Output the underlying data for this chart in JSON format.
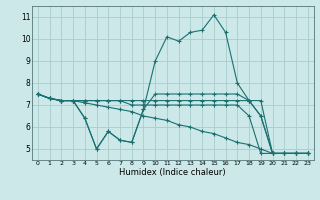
{
  "title": "",
  "xlabel": "Humidex (Indice chaleur)",
  "bg_color": "#cce8e8",
  "grid_color": "#aacccc",
  "line_color": "#1a7070",
  "x_ticks": [
    0,
    1,
    2,
    3,
    4,
    5,
    6,
    7,
    8,
    9,
    10,
    11,
    12,
    13,
    14,
    15,
    16,
    17,
    18,
    19,
    20,
    21,
    22,
    23
  ],
  "y_ticks": [
    5,
    6,
    7,
    8,
    9,
    10,
    11
  ],
  "ylim": [
    4.5,
    11.5
  ],
  "xlim": [
    -0.5,
    23.5
  ],
  "series": [
    {
      "x": [
        0,
        1,
        2,
        3,
        4,
        5,
        6,
        7,
        8,
        9,
        10,
        11,
        12,
        13,
        14,
        15,
        16,
        17,
        18,
        19,
        20,
        21,
        22,
        23
      ],
      "y": [
        7.5,
        7.3,
        7.2,
        7.2,
        6.4,
        5.0,
        5.8,
        5.4,
        5.3,
        6.8,
        7.5,
        7.5,
        7.5,
        7.5,
        7.5,
        7.5,
        7.5,
        7.5,
        7.2,
        6.5,
        4.8,
        4.8,
        4.8,
        4.8
      ]
    },
    {
      "x": [
        0,
        1,
        2,
        3,
        4,
        5,
        6,
        7,
        8,
        9,
        10,
        11,
        12,
        13,
        14,
        15,
        16,
        17,
        18,
        19,
        20,
        21,
        22,
        23
      ],
      "y": [
        7.5,
        7.3,
        7.2,
        7.2,
        7.2,
        7.2,
        7.2,
        7.2,
        7.2,
        7.2,
        7.2,
        7.2,
        7.2,
        7.2,
        7.2,
        7.2,
        7.2,
        7.2,
        7.2,
        7.2,
        4.8,
        4.8,
        4.8,
        4.8
      ]
    },
    {
      "x": [
        0,
        1,
        2,
        3,
        4,
        5,
        6,
        7,
        8,
        9,
        10,
        11,
        12,
        13,
        14,
        15,
        16,
        17,
        18,
        19,
        20,
        21,
        22,
        23
      ],
      "y": [
        7.5,
        7.3,
        7.2,
        7.2,
        7.2,
        7.2,
        7.2,
        7.2,
        7.0,
        7.0,
        7.0,
        7.0,
        7.0,
        7.0,
        7.0,
        7.0,
        7.0,
        7.0,
        6.5,
        4.8,
        4.8,
        4.8,
        4.8,
        4.8
      ]
    },
    {
      "x": [
        0,
        1,
        2,
        3,
        4,
        5,
        6,
        7,
        8,
        9,
        10,
        11,
        12,
        13,
        14,
        15,
        16,
        17,
        18,
        19,
        20,
        21,
        22,
        23
      ],
      "y": [
        7.5,
        7.3,
        7.2,
        7.2,
        7.1,
        7.0,
        6.9,
        6.8,
        6.7,
        6.5,
        6.4,
        6.3,
        6.1,
        6.0,
        5.8,
        5.7,
        5.5,
        5.3,
        5.2,
        5.0,
        4.8,
        4.8,
        4.8,
        4.8
      ]
    },
    {
      "x": [
        0,
        1,
        2,
        3,
        4,
        5,
        6,
        7,
        8,
        9,
        10,
        11,
        12,
        13,
        14,
        15,
        16,
        17,
        18,
        19,
        20,
        21,
        22,
        23
      ],
      "y": [
        7.5,
        7.3,
        7.2,
        7.2,
        6.4,
        5.0,
        5.8,
        5.4,
        5.3,
        6.8,
        9.0,
        10.1,
        9.9,
        10.3,
        10.4,
        11.1,
        10.3,
        8.0,
        7.2,
        6.5,
        4.8,
        4.8,
        4.8,
        4.8
      ]
    }
  ]
}
